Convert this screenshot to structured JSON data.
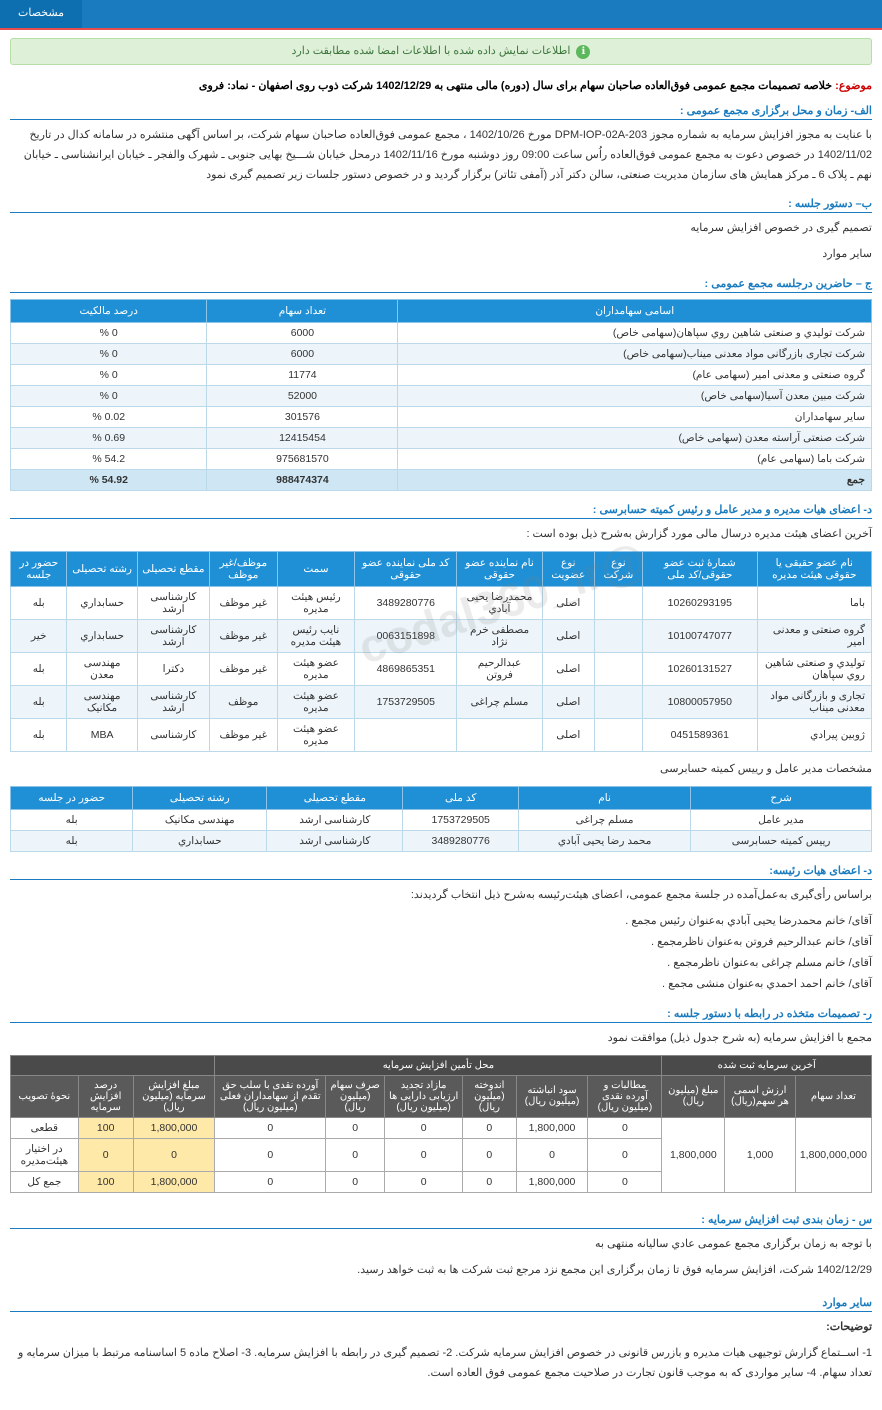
{
  "topbar": {
    "tab": "مشخصات"
  },
  "alert": "اطلاعات نمایش داده شده با اطلاعات امضا شده مطابقت دارد",
  "subject": {
    "prefix": "موضوع:",
    "body": "خلاصه تصمیمات مجمع عمومی فوق‌العاده صاحبان سهام برای سال (دوره) مالی منتهی به 1402/12/29 شرکت ذوب روی اصفهان - نماد: فروی"
  },
  "sec_a": {
    "title": "الف- زمان و محل برگزاری مجمع عمومی :",
    "body": "با عنایت به مجوز افزایش سرمایه به شماره مجوز DPM-IOP-02A-203 مورخ 1402/10/26 ، مجمع عمومی فوق‌العاده صاحبان سهام شرکت، بر اساس آگهی منتشره در سامانه کدال در تاریخ 1402/11/02 در خصوص دعوت به مجمع عمومی فوق‌العاده راُس ساعت 09:00 روز دوشنبه مورخ 1402/11/16 درمحل خیابان شـــیخ بهایی جنوبی ـ شهرک والفجر ـ خیابان ایرانشناسی ـ خیابان نهم ـ پلاک 6 ـ مرکز همایش های سازمان مدیریت صنعتی، سالن دکتر آذر (آمفی تئاتر) برگزار گردید و در خصوص دستور جلسات زیر تصمیم گیری نمود"
  },
  "sec_b": {
    "title": "ب– دستور جلسه :",
    "l1": "تصمیم گیری در خصوص افزایش سرمایه",
    "l2": "سایر موارد"
  },
  "sec_c": {
    "title": "ج – حاضرین درجلسه مجمع عمومی :",
    "headers": [
      "اسامی سهامداران",
      "تعداد سهام",
      "درصد مالکیت"
    ],
    "rows": [
      [
        "شرکت تولیدي و صنعتی شاهین روي سپاهان(سهامی خاص)",
        "6000",
        "0 %"
      ],
      [
        "شرکت تجاری بازرگانی مواد معدنی میناب(سهامی خاص)",
        "6000",
        "0 %"
      ],
      [
        "گروه صنعتی و معدنی امیر (سهامی عام)",
        "11774",
        "0 %"
      ],
      [
        "شرکت مبین معدن آسیا(سهامی خاص)",
        "52000",
        "0 %"
      ],
      [
        "سایر سهامداران",
        "301576",
        "0.02 %"
      ],
      [
        "شرکت صنعتی آراسته معدن (سهامی خاص)",
        "12415454",
        "0.69 %"
      ],
      [
        "شرکت باما (سهامی عام)",
        "975681570",
        "54.2 %"
      ]
    ],
    "sum": [
      "جمع",
      "988474374",
      "54.92 %"
    ]
  },
  "sec_d": {
    "title": "د- اعضای هیات مدیره و مدیر عامل و رئیس کمیته حسابرسی :",
    "lead": "آخرین اعضای هیئت مدیره درسال مالی مورد گزارش به‌شرح ذیل بوده است :",
    "headers": [
      "نام عضو حقیقی یا حقوقی هیئت مدیره",
      "شمارۀ ثبت عضو حقوقی/کد ملی",
      "نوع شرکت",
      "نوع عضویت",
      "نام نماینده عضو حقوقی",
      "کد ملی نماینده عضو حقوقی",
      "سمت",
      "موظف/غیر موظف",
      "مقطع تحصیلی",
      "رشته تحصیلی",
      "حضور در جلسه"
    ],
    "rows": [
      [
        "باما",
        "10260293195",
        "",
        "اصلی",
        "محمدرضا یحیی آبادي",
        "3489280776",
        "رئیس هیئت مدیره",
        "غیر موظف",
        "کارشناسی ارشد",
        "حسابداري",
        "بله"
      ],
      [
        "گروه صنعتی و معدنی امیر",
        "10100747077",
        "",
        "اصلی",
        "مصطفی خرم نژاد",
        "0063151898",
        "نایب رئیس هیئت مدیره",
        "غیر موظف",
        "کارشناسی ارشد",
        "حسابداري",
        "خیر"
      ],
      [
        "تولیدي و صنعتی شاهین روي سپاهان",
        "10260131527",
        "",
        "اصلی",
        "عبدالرحیم فروتن",
        "4869865351",
        "عضو هیئت مدیره",
        "غیر موظف",
        "دکترا",
        "مهندسی معدن",
        "بله"
      ],
      [
        "تجاری و بازرگانی مواد معدنی میناب",
        "10800057950",
        "",
        "اصلی",
        "مسلم چراغی",
        "1753729505",
        "عضو هیئت مدیره",
        "موظف",
        "کارشناسی ارشد",
        "مهندسی مکانیک",
        "بله"
      ],
      [
        "ژوبین پیرادي",
        "0451589361",
        "",
        "اصلی",
        "",
        "",
        "عضو هیئت مدیره",
        "غیر موظف",
        "کارشناسی",
        "MBA",
        "بله"
      ]
    ],
    "sub_title": "مشخصات مدیر عامل و رییس کمیته حسابرسی",
    "sub_headers": [
      "شرح",
      "نام",
      "کد ملی",
      "مقطع تحصیلی",
      "رشته تحصیلی",
      "حضور در جلسه"
    ],
    "sub_rows": [
      [
        "مدیر عامل",
        "مسلم چراغی",
        "1753729505",
        "کارشناسی ارشد",
        "مهندسی مکانیک",
        "بله"
      ],
      [
        "رییس کمیته حسابرسی",
        "محمد رضا یحیی آبادي",
        "3489280776",
        "کارشناسی ارشد",
        "حسابداري",
        "بله"
      ]
    ]
  },
  "sec_e": {
    "title": "د- اعضای هیات رئیسه:",
    "lead": "براساس رأی‌گیری به‌عمل‌آمده در جلسة مجمع عمومی، اعضای هیئت‌رئیسه به‌شرح ذیل انتخاب گردیدند:",
    "items": [
      "آقای/ خانم  محمدرضا یحیی آبادي  به‌عنوان رئیس مجمع .",
      "آقای/ خانم  عبدالرحیم فروتن  به‌عنوان ناظرمجمع .",
      "آقای/ خانم  مسلم چراغی  به‌عنوان ناظرمجمع .",
      "آقای/ خانم  احمد احمدي  به‌عنوان منشی مجمع ."
    ]
  },
  "sec_f": {
    "title": "ر- تصمیمات متخذه در رابطه با دستور جلسه :",
    "lead": "مجمع با افزایش سرمایه (به شرح جدول ذیل) موافقت نمود",
    "top1": "آخرین سرمایه ثبت شده",
    "top2": "محل تأمین  افزایش سرمایه",
    "headers": [
      "تعداد سهام",
      "ارزش اسمی هر سهم(ریال)",
      "مبلغ (میلیون ریال)",
      "مطالبات و آورده نقدی (میلیون ریال)",
      "سود انباشته (میلیون ریال)",
      "اندوخته (میلیون ریال)",
      "مازاد تجدید ارزیابی دارایی ها (میلیون ریال)",
      "صرف سهام (میلیون ریال)",
      "آورده نقدی با سلب حق تقدم از سهامداران فعلی (میلیون ریال)",
      "مبلغ  افزایش سرمایه (میلیون ریال)",
      "درصد افزایش سرمایه",
      "نحوۀ تصویب"
    ],
    "rows": [
      [
        "1,800,000,000",
        "1,000",
        "1,800,000",
        "0",
        "1,800,000",
        "0",
        "0",
        "0",
        "0",
        "1,800,000",
        "100",
        "قطعی"
      ],
      [
        "",
        "",
        "",
        "0",
        "0",
        "0",
        "0",
        "0",
        "0",
        "0",
        "0",
        "در اختیار هیئت‌مدیره"
      ],
      [
        "",
        "",
        "",
        "0",
        "1,800,000",
        "0",
        "0",
        "0",
        "0",
        "1,800,000",
        "100",
        "جمع کل"
      ]
    ]
  },
  "sec_g": {
    "title": "س - زمان بندی ثبت افزایش سرمایه :",
    "l1": "با توجه به زمان برگزاری مجمع عمومی عادي سالیانه منتهی به",
    "l2": "1402/12/29 شرکت، افزایش سرمایه فوق تا زمان برگزاری این مجمع نزد مرجع ثبت شرکت ها به ثبت خواهد رسید."
  },
  "sec_other": {
    "title": "سایر موارد",
    "sub": "توضیحات:",
    "body": "1- اســتماع گزارش توجیهی هیات مدیره و بازرس قانونی در خصوص افزایش سرمایه شرکت. 2- تصمیم گیری در رابطه با افزایش سرمایه. 3- اصلاح ماده 5 اساسنامه مرتبط با میزان سرمایه و تعداد سهام. 4- سایر مواردی که به موجب قانون تجارت در صلاحیت مجمع عمومی فوق العاده است."
  },
  "watermark": "@codal360_ir"
}
